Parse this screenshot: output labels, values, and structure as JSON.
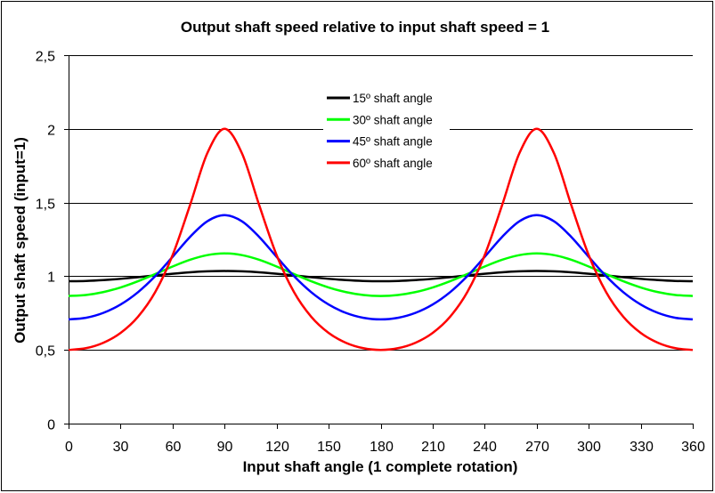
{
  "chart_data": {
    "type": "line",
    "title": "Output shaft speed relative to input shaft speed = 1",
    "xlabel": "Input shaft angle (1 complete rotation)",
    "ylabel": "Output shaft speed (input=1)",
    "xlim": [
      0,
      360
    ],
    "ylim": [
      0,
      2.5
    ],
    "x_ticks": [
      "0",
      "30",
      "60",
      "90",
      "120",
      "150",
      "180",
      "210",
      "240",
      "270",
      "300",
      "330",
      "360"
    ],
    "y_ticks": [
      "0",
      "0,5",
      "1",
      "1,5",
      "2",
      "2,5"
    ],
    "grid": "horizontal",
    "legend_position": "top-center",
    "x": [
      0,
      10,
      20,
      30,
      40,
      50,
      60,
      70,
      80,
      90,
      100,
      110,
      120,
      130,
      140,
      150,
      160,
      170,
      180,
      190,
      200,
      210,
      220,
      230,
      240,
      250,
      260,
      270,
      280,
      290,
      300,
      310,
      320,
      330,
      340,
      350,
      360
    ],
    "series": [
      {
        "name": "15º shaft angle",
        "color": "#000000",
        "values": [
          0.9659,
          0.9679,
          0.9736,
          0.9824,
          0.9934,
          1.0055,
          1.017,
          1.0267,
          1.033,
          1.0353,
          1.033,
          1.0267,
          1.017,
          1.0055,
          0.9934,
          0.9824,
          0.9736,
          0.9679,
          0.9659,
          0.9679,
          0.9736,
          0.9824,
          0.9934,
          1.0055,
          1.017,
          1.0267,
          1.033,
          1.0353,
          1.033,
          1.0267,
          1.017,
          1.0055,
          0.9934,
          0.9824,
          0.9736,
          0.9679,
          0.9659
        ]
      },
      {
        "name": "30º shaft angle",
        "color": "#00ff00",
        "values": [
          0.866,
          0.8726,
          0.8921,
          0.9238,
          0.9658,
          1.0149,
          1.0659,
          1.1114,
          1.1432,
          1.1547,
          1.1432,
          1.1114,
          1.0659,
          1.0149,
          0.9658,
          0.9238,
          0.8921,
          0.8726,
          0.866,
          0.8726,
          0.8921,
          0.9238,
          0.9658,
          1.0149,
          1.0659,
          1.1114,
          1.1432,
          1.1547,
          1.1432,
          1.1114,
          1.0659,
          1.0149,
          0.9658,
          0.9238,
          0.8921,
          0.8726,
          0.866
        ]
      },
      {
        "name": "45º shaft angle",
        "color": "#0000ff",
        "values": [
          0.7071,
          0.7179,
          0.751,
          0.8081,
          0.8912,
          1.0007,
          1.1314,
          1.2661,
          1.3728,
          1.4142,
          1.3728,
          1.2661,
          1.1314,
          1.0007,
          0.8912,
          0.8081,
          0.751,
          0.7179,
          0.7071,
          0.7179,
          0.751,
          0.8081,
          0.8912,
          1.0007,
          1.1314,
          1.2661,
          1.3728,
          1.4142,
          1.3728,
          1.2661,
          1.1314,
          1.0007,
          0.8912,
          0.8081,
          0.751,
          0.7179,
          0.7071
        ]
      },
      {
        "name": "60º shaft angle",
        "color": "#ff0000",
        "values": [
          0.5,
          0.5116,
          0.5481,
          0.6154,
          0.7245,
          0.893,
          1.1429,
          1.4805,
          1.8341,
          2.0,
          1.8341,
          1.4805,
          1.1429,
          0.893,
          0.7245,
          0.6154,
          0.5481,
          0.5116,
          0.5,
          0.5116,
          0.5481,
          0.6154,
          0.7245,
          0.893,
          1.1429,
          1.4805,
          1.8341,
          2.0,
          1.8341,
          1.4805,
          1.1429,
          0.893,
          0.7245,
          0.6154,
          0.5481,
          0.5116,
          0.5
        ]
      }
    ]
  }
}
